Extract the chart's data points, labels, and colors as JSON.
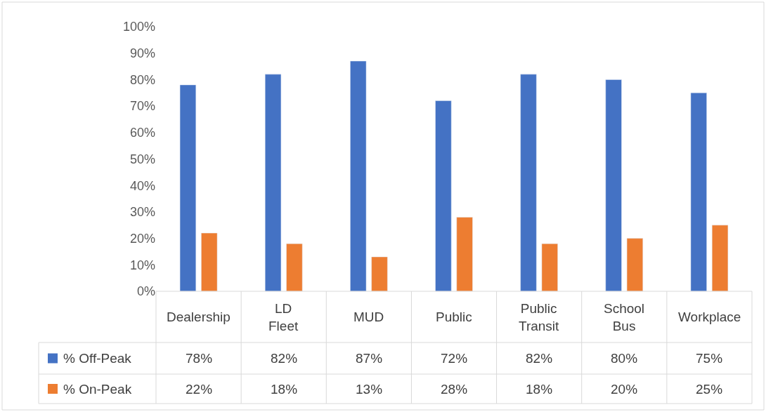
{
  "chart_data": {
    "type": "bar",
    "categories": [
      "Dealership",
      "LD Fleet",
      "MUD",
      "Public",
      "Public Transit",
      "School Bus",
      "Workplace"
    ],
    "series": [
      {
        "name": "% Off-Peak",
        "color": "#4472c4",
        "values": [
          78,
          82,
          87,
          72,
          82,
          80,
          75
        ],
        "value_labels": [
          "78%",
          "82%",
          "87%",
          "72%",
          "82%",
          "80%",
          "75%"
        ]
      },
      {
        "name": "% On-Peak",
        "color": "#ed7d31",
        "values": [
          22,
          18,
          13,
          28,
          18,
          20,
          25
        ],
        "value_labels": [
          "22%",
          "18%",
          "13%",
          "28%",
          "18%",
          "20%",
          "25%"
        ]
      }
    ],
    "ylim": [
      0,
      100
    ],
    "yticks": [
      {
        "value": 0,
        "label": "0%"
      },
      {
        "value": 10,
        "label": "10%"
      },
      {
        "value": 20,
        "label": "20%"
      },
      {
        "value": 30,
        "label": "30%"
      },
      {
        "value": 40,
        "label": "40%"
      },
      {
        "value": 50,
        "label": "50%"
      },
      {
        "value": 60,
        "label": "60%"
      },
      {
        "value": 70,
        "label": "70%"
      },
      {
        "value": 80,
        "label": "80%"
      },
      {
        "value": 90,
        "label": "90%"
      },
      {
        "value": 100,
        "label": "100%"
      }
    ],
    "legend": "bottom left"
  }
}
